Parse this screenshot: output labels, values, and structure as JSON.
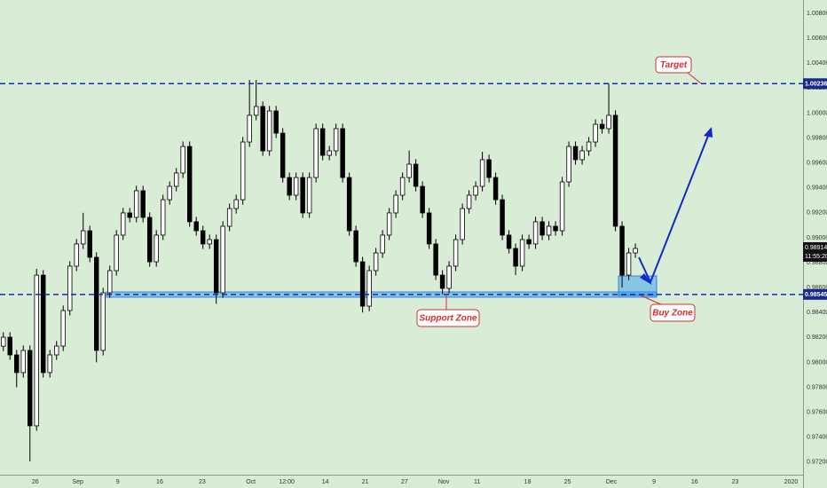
{
  "chart_data": {
    "type": "candlestick",
    "open": [
      0.9813,
      0.98202,
      0.9806,
      0.97918,
      0.98096,
      0.97491,
      0.987,
      0.97918,
      0.9806,
      0.98131,
      0.98416,
      0.98772,
      0.9895,
      0.99056,
      0.98843,
      0.98096,
      0.98558,
      0.98736,
      0.99021,
      0.99199,
      0.99163,
      0.99377,
      0.99163,
      0.98807,
      0.99021,
      0.99305,
      0.99412,
      0.99519,
      0.99732,
      0.99128,
      0.99056,
      0.9895,
      0.98985,
      0.98558,
      0.99092,
      0.99234,
      0.99305,
      0.99768,
      0.99982,
      1.00053,
      0.99697,
      1.00017,
      0.99839,
      0.99483,
      0.99341,
      0.99483,
      0.99199,
      0.99483,
      0.99875,
      0.99661,
      0.99697,
      0.99875,
      0.99483,
      0.99056,
      0.98807,
      0.98451,
      0.98736,
      0.98878,
      0.99021,
      0.99199,
      0.99341,
      0.99483,
      0.9959,
      0.99412,
      0.99199,
      0.9895,
      0.987,
      0.98594,
      0.98772,
      0.98985,
      0.99234,
      0.99341,
      0.99412,
      0.99626,
      0.99483,
      0.99305,
      0.99021,
      0.98914,
      0.98772,
      0.98985,
      0.9895,
      0.99128,
      0.99021,
      0.99092,
      0.99056,
      0.99448,
      0.99732,
      0.99626,
      0.99697,
      0.99768,
      0.9991,
      0.99875,
      0.99982,
      0.99092,
      0.987,
      0.98878
    ],
    "high": [
      0.98242,
      0.98242,
      0.981,
      0.98136,
      0.98136,
      0.9875,
      0.9874,
      0.981,
      0.98171,
      0.98456,
      0.98812,
      0.9899,
      0.992,
      0.99096,
      0.98883,
      0.98598,
      0.98776,
      0.99061,
      0.99239,
      0.99239,
      0.99417,
      0.99417,
      0.99203,
      0.99061,
      0.99345,
      0.99452,
      0.99559,
      0.99772,
      0.99772,
      0.99168,
      0.99096,
      0.99025,
      0.99025,
      0.99132,
      0.99274,
      0.99345,
      0.99808,
      1.00266,
      1.00266,
      1.00093,
      1.00057,
      1.00057,
      0.99879,
      0.99523,
      0.99523,
      0.99523,
      0.99523,
      0.99915,
      0.99915,
      0.99737,
      0.99915,
      0.99915,
      0.99523,
      0.99096,
      0.98847,
      0.98776,
      0.98918,
      0.99061,
      0.99239,
      0.99381,
      0.99523,
      0.997,
      0.9963,
      0.99452,
      0.99239,
      0.9899,
      0.9874,
      0.98812,
      0.99025,
      0.99274,
      0.99381,
      0.99452,
      0.9969,
      0.99666,
      0.99523,
      0.99345,
      0.99061,
      0.98954,
      0.99025,
      0.99025,
      0.99168,
      0.99168,
      0.99132,
      0.99132,
      0.99488,
      0.99772,
      0.99772,
      0.99737,
      0.99808,
      0.9995,
      0.9995,
      1.00236,
      1.00022,
      0.99132,
      0.98918,
      0.98954
    ],
    "low": [
      0.9809,
      0.9802,
      0.978,
      0.97878,
      0.97206,
      0.97451,
      0.97878,
      0.97878,
      0.9802,
      0.98091,
      0.98376,
      0.98732,
      0.9891,
      0.98803,
      0.98,
      0.98056,
      0.98518,
      0.98696,
      0.98981,
      0.99123,
      0.99123,
      0.99123,
      0.98767,
      0.98767,
      0.98981,
      0.99265,
      0.99372,
      0.99479,
      0.99088,
      0.99016,
      0.9891,
      0.9891,
      0.9847,
      0.98518,
      0.99052,
      0.99194,
      0.99265,
      0.99728,
      0.99942,
      0.99657,
      0.99657,
      0.99799,
      0.99443,
      0.99301,
      0.99301,
      0.99159,
      0.99159,
      0.99443,
      0.99621,
      0.99621,
      0.99657,
      0.99443,
      0.99016,
      0.98767,
      0.984,
      0.98411,
      0.98696,
      0.98838,
      0.98981,
      0.99159,
      0.99301,
      0.99443,
      0.99372,
      0.99159,
      0.9891,
      0.9866,
      0.98545,
      0.98554,
      0.98732,
      0.98945,
      0.99194,
      0.99301,
      0.99372,
      0.99443,
      0.99265,
      0.98981,
      0.98874,
      0.987,
      0.98732,
      0.9891,
      0.9891,
      0.98981,
      0.98981,
      0.99016,
      0.99016,
      0.99408,
      0.99586,
      0.99586,
      0.99657,
      0.99728,
      0.99835,
      0.99835,
      0.99052,
      0.986,
      0.9866,
      0.98838
    ],
    "close": [
      0.98202,
      0.9806,
      0.97918,
      0.98096,
      0.97491,
      0.987,
      0.97918,
      0.9806,
      0.98131,
      0.98416,
      0.98772,
      0.9895,
      0.99056,
      0.98843,
      0.98096,
      0.98558,
      0.98736,
      0.99021,
      0.99199,
      0.99163,
      0.99377,
      0.99163,
      0.98807,
      0.99021,
      0.99305,
      0.99412,
      0.99519,
      0.99732,
      0.99128,
      0.99056,
      0.9895,
      0.98985,
      0.98558,
      0.99092,
      0.99234,
      0.99305,
      0.99768,
      0.99982,
      1.00053,
      0.99697,
      1.00017,
      0.99839,
      0.99483,
      0.99341,
      0.99483,
      0.99199,
      0.99483,
      0.99875,
      0.99661,
      0.99697,
      0.99875,
      0.99483,
      0.99056,
      0.98807,
      0.98451,
      0.98736,
      0.98878,
      0.99021,
      0.99199,
      0.99341,
      0.99483,
      0.9959,
      0.99412,
      0.99199,
      0.9895,
      0.987,
      0.98594,
      0.98772,
      0.98985,
      0.99234,
      0.99341,
      0.99412,
      0.99626,
      0.99483,
      0.99305,
      0.99021,
      0.98914,
      0.98772,
      0.98985,
      0.9895,
      0.99128,
      0.99021,
      0.99092,
      0.99056,
      0.99448,
      0.99732,
      0.99626,
      0.99697,
      0.99768,
      0.9991,
      0.99875,
      0.99982,
      0.99092,
      0.987,
      0.98878,
      0.98914
    ],
    "up_color": "#ffffff",
    "down_color": "#000000",
    "xlim": [
      -0.5,
      120.2
    ],
    "xticks": [
      {
        "value": 4.8,
        "label": "26"
      },
      {
        "value": 11.2,
        "label": "Sep"
      },
      {
        "value": 17.2,
        "label": "9"
      },
      {
        "value": 23.5,
        "label": "16"
      },
      {
        "value": 29.9,
        "label": "23"
      },
      {
        "value": 37.2,
        "label": "Oct"
      },
      {
        "value": 42.6,
        "label": "12:00"
      },
      {
        "value": 48.4,
        "label": "14"
      },
      {
        "value": 54.4,
        "label": "21"
      },
      {
        "value": 60.3,
        "label": "27"
      },
      {
        "value": 66.2,
        "label": "Nov"
      },
      {
        "value": 71.2,
        "label": "11"
      },
      {
        "value": 78.8,
        "label": "18"
      },
      {
        "value": 84.8,
        "label": "25"
      },
      {
        "value": 91.4,
        "label": "Dec"
      },
      {
        "value": 97.8,
        "label": "9"
      },
      {
        "value": 103.9,
        "label": "16"
      },
      {
        "value": 110.0,
        "label": "23"
      },
      {
        "value": 118.4,
        "label": "2020"
      }
    ],
    "ylim": [
      0.97099,
      1.00907
    ],
    "yticks": [
      {
        "value": 1.008,
        "label": "1.00800"
      },
      {
        "value": 1.006,
        "label": "1.00600"
      },
      {
        "value": 1.004,
        "label": "1.00400"
      },
      {
        "value": 1.002,
        "label": "1.00200"
      },
      {
        "value": 1.0,
        "label": "1.00000"
      },
      {
        "value": 0.998,
        "label": "0.99800"
      },
      {
        "value": 0.996,
        "label": "0.99600"
      },
      {
        "value": 0.994,
        "label": "0.99400"
      },
      {
        "value": 0.992,
        "label": "0.99200"
      },
      {
        "value": 0.99,
        "label": "0.99000"
      },
      {
        "value": 0.988,
        "label": "0.98800"
      },
      {
        "value": 0.986,
        "label": "0.98600"
      },
      {
        "value": 0.984,
        "label": "0.98400"
      },
      {
        "value": 0.982,
        "label": "0.98200"
      },
      {
        "value": 0.98,
        "label": "0.98000"
      },
      {
        "value": 0.978,
        "label": "0.97800"
      },
      {
        "value": 0.976,
        "label": "0.97600"
      },
      {
        "value": 0.974,
        "label": "0.97400"
      },
      {
        "value": 0.972,
        "label": "0.97200"
      }
    ],
    "grid": false,
    "levels": [
      1.00236,
      0.98545
    ],
    "level_color": "#1428c8",
    "last_price": 0.98914,
    "last_time": "11:55:20",
    "annotations": {
      "target": "Target",
      "support": "Support Zone",
      "buy": "Buy Zone"
    }
  }
}
